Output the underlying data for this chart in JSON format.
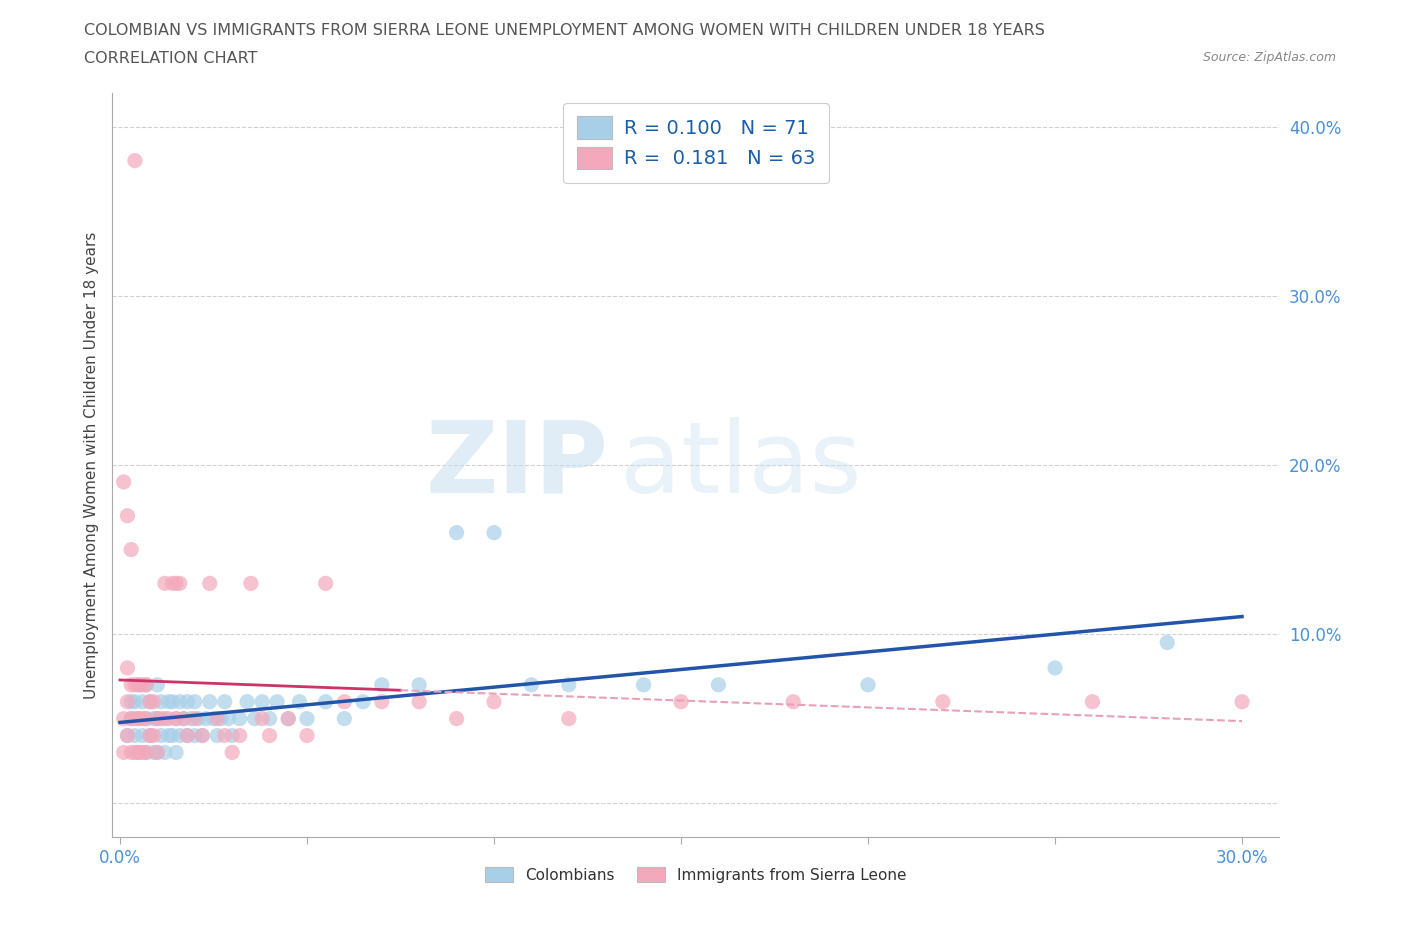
{
  "title_line1": "COLOMBIAN VS IMMIGRANTS FROM SIERRA LEONE UNEMPLOYMENT AMONG WOMEN WITH CHILDREN UNDER 18 YEARS",
  "title_line2": "CORRELATION CHART",
  "source": "Source: ZipAtlas.com",
  "ylabel_text": "Unemployment Among Women with Children Under 18 years",
  "xmin": 0.0,
  "xmax": 0.3,
  "ymin": -0.02,
  "ymax": 0.42,
  "xticks": [
    0.0,
    0.05,
    0.1,
    0.15,
    0.2,
    0.25,
    0.3
  ],
  "yticks": [
    0.0,
    0.1,
    0.2,
    0.3,
    0.4
  ],
  "colombian_color": "#a8cfe8",
  "sierra_leone_color": "#f4a8bb",
  "colombian_R": 0.1,
  "colombian_N": 71,
  "sierra_leone_R": 0.181,
  "sierra_leone_N": 63,
  "trend_color_colombian": "#2255aa",
  "trend_color_sierra": "#cc3366",
  "trend_color_sierra_dashed": "#e8a0b8",
  "legend_label_colombian": "Colombians",
  "legend_label_sierra": "Immigrants from Sierra Leone",
  "watermark_zip": "ZIP",
  "watermark_atlas": "atlas",
  "background_color": "#ffffff",
  "grid_color": "#cccccc",
  "tick_color": "#4a90d9",
  "colombian_x": [
    0.002,
    0.003,
    0.003,
    0.004,
    0.004,
    0.005,
    0.005,
    0.005,
    0.006,
    0.006,
    0.007,
    0.007,
    0.007,
    0.008,
    0.008,
    0.009,
    0.009,
    0.01,
    0.01,
    0.01,
    0.011,
    0.011,
    0.012,
    0.012,
    0.013,
    0.013,
    0.014,
    0.014,
    0.015,
    0.015,
    0.016,
    0.016,
    0.017,
    0.018,
    0.018,
    0.019,
    0.02,
    0.02,
    0.021,
    0.022,
    0.023,
    0.024,
    0.025,
    0.026,
    0.027,
    0.028,
    0.029,
    0.03,
    0.032,
    0.034,
    0.036,
    0.038,
    0.04,
    0.042,
    0.045,
    0.048,
    0.05,
    0.055,
    0.06,
    0.065,
    0.07,
    0.08,
    0.09,
    0.1,
    0.11,
    0.12,
    0.14,
    0.16,
    0.2,
    0.25,
    0.28
  ],
  "colombian_y": [
    0.04,
    0.05,
    0.06,
    0.04,
    0.06,
    0.03,
    0.05,
    0.07,
    0.04,
    0.06,
    0.03,
    0.05,
    0.07,
    0.04,
    0.06,
    0.03,
    0.05,
    0.03,
    0.05,
    0.07,
    0.04,
    0.06,
    0.03,
    0.05,
    0.04,
    0.06,
    0.04,
    0.06,
    0.03,
    0.05,
    0.04,
    0.06,
    0.05,
    0.04,
    0.06,
    0.05,
    0.04,
    0.06,
    0.05,
    0.04,
    0.05,
    0.06,
    0.05,
    0.04,
    0.05,
    0.06,
    0.05,
    0.04,
    0.05,
    0.06,
    0.05,
    0.06,
    0.05,
    0.06,
    0.05,
    0.06,
    0.05,
    0.06,
    0.05,
    0.06,
    0.07,
    0.07,
    0.16,
    0.16,
    0.07,
    0.07,
    0.07,
    0.07,
    0.07,
    0.08,
    0.095
  ],
  "sierra_x": [
    0.001,
    0.001,
    0.002,
    0.002,
    0.002,
    0.003,
    0.003,
    0.003,
    0.004,
    0.004,
    0.004,
    0.005,
    0.005,
    0.005,
    0.006,
    0.006,
    0.006,
    0.007,
    0.007,
    0.007,
    0.008,
    0.008,
    0.009,
    0.009,
    0.01,
    0.01,
    0.011,
    0.012,
    0.013,
    0.014,
    0.015,
    0.015,
    0.016,
    0.017,
    0.018,
    0.02,
    0.022,
    0.024,
    0.026,
    0.028,
    0.03,
    0.032,
    0.035,
    0.038,
    0.04,
    0.045,
    0.05,
    0.055,
    0.06,
    0.07,
    0.08,
    0.09,
    0.1,
    0.12,
    0.15,
    0.18,
    0.22,
    0.26,
    0.3,
    0.001,
    0.002,
    0.003,
    0.004
  ],
  "sierra_y": [
    0.03,
    0.05,
    0.04,
    0.06,
    0.08,
    0.03,
    0.05,
    0.07,
    0.03,
    0.05,
    0.07,
    0.03,
    0.05,
    0.07,
    0.03,
    0.05,
    0.07,
    0.03,
    0.05,
    0.07,
    0.04,
    0.06,
    0.04,
    0.06,
    0.03,
    0.05,
    0.05,
    0.13,
    0.05,
    0.13,
    0.05,
    0.13,
    0.13,
    0.05,
    0.04,
    0.05,
    0.04,
    0.13,
    0.05,
    0.04,
    0.03,
    0.04,
    0.13,
    0.05,
    0.04,
    0.05,
    0.04,
    0.13,
    0.06,
    0.06,
    0.06,
    0.05,
    0.06,
    0.05,
    0.06,
    0.06,
    0.06,
    0.06,
    0.06,
    0.19,
    0.17,
    0.15,
    0.38
  ]
}
